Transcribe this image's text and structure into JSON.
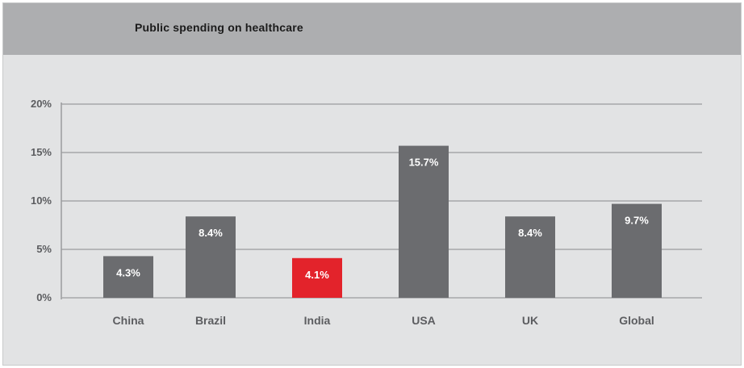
{
  "colors": {
    "bar": "#6b6c6f",
    "highlight": "#e3232b",
    "grid": "#a6a7a9",
    "axis": "#9a9b9d"
  },
  "chart_data": {
    "type": "bar",
    "title": "Public spending on healthcare",
    "xlabel": "",
    "ylabel": "",
    "ylim": [
      0,
      20
    ],
    "y_ticks": [
      0,
      5,
      10,
      15,
      20
    ],
    "y_tick_labels": [
      "0%",
      "5%",
      "10%",
      "15%",
      "20%"
    ],
    "grid": true,
    "categories": [
      "China",
      "Brazil",
      "India",
      "USA",
      "UK",
      "Global"
    ],
    "values": [
      4.3,
      8.4,
      4.1,
      15.7,
      8.4,
      9.7
    ],
    "value_labels": [
      "4.3%",
      "8.4%",
      "4.1%",
      "15.7%",
      "8.4%",
      "9.7%"
    ],
    "highlight_category": "India"
  }
}
